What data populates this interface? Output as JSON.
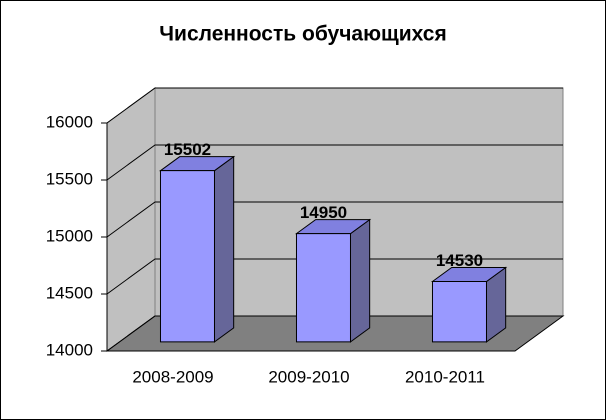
{
  "chart_data": {
    "type": "bar3d",
    "title": "Численность обучающихся",
    "categories": [
      "2008-2009",
      "2009-2010",
      "2010-2011"
    ],
    "values": [
      15502,
      14950,
      14530
    ],
    "color": "#9999ff",
    "ylim": [
      14000,
      16000
    ],
    "yticks": [
      14000,
      14500,
      15000,
      15500,
      16000
    ],
    "grid": true
  }
}
